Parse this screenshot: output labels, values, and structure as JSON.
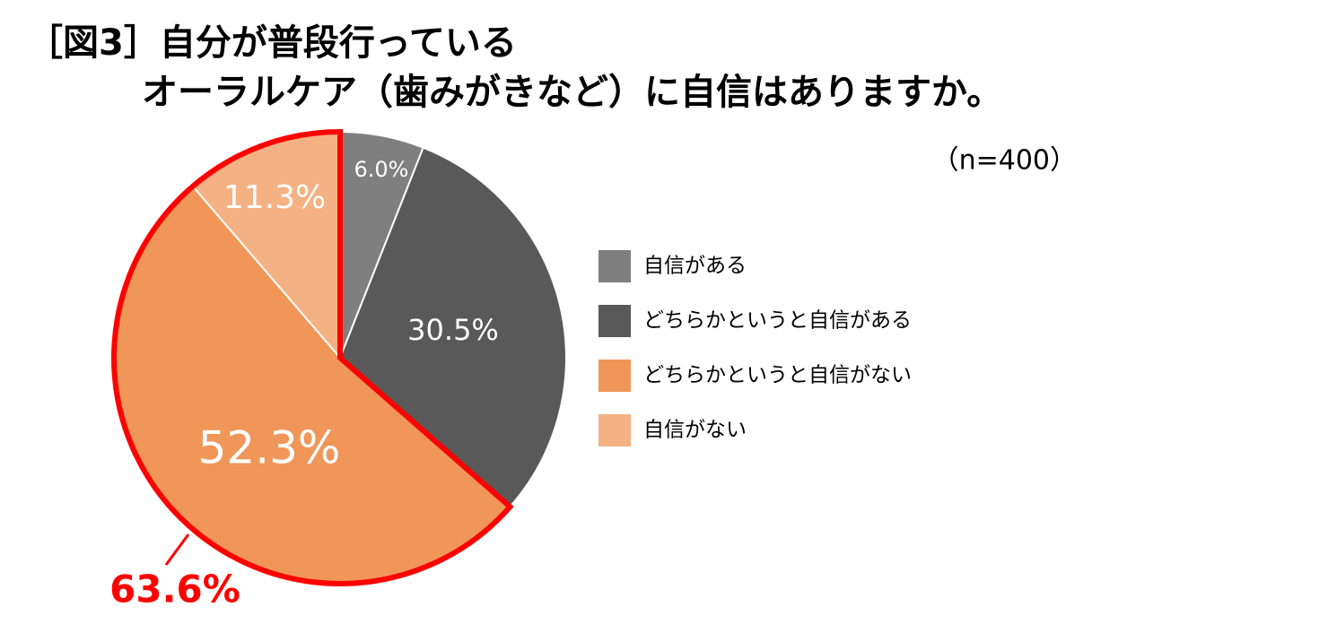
{
  "chart_data": {
    "type": "pie",
    "title": [
      "［図3］自分が普段行っている",
      "オーラルケア（歯みがきなど）に自信はありますか。"
    ],
    "subtitle": "（n=400）",
    "categories": [
      "自信がある",
      "どちらかというと自信がある",
      "どちらかというと自信がない",
      "自信がない"
    ],
    "values": [
      6.0,
      30.5,
      52.3,
      11.3
    ],
    "value_labels": [
      "6.0%",
      "30.5%",
      "52.3%",
      "11.3%"
    ],
    "colors": [
      "#7f7f7f",
      "#595959",
      "#f09659",
      "#f4b183"
    ],
    "highlight": {
      "value": 63.6,
      "label": "63.6%",
      "color": "#ff0000"
    }
  }
}
